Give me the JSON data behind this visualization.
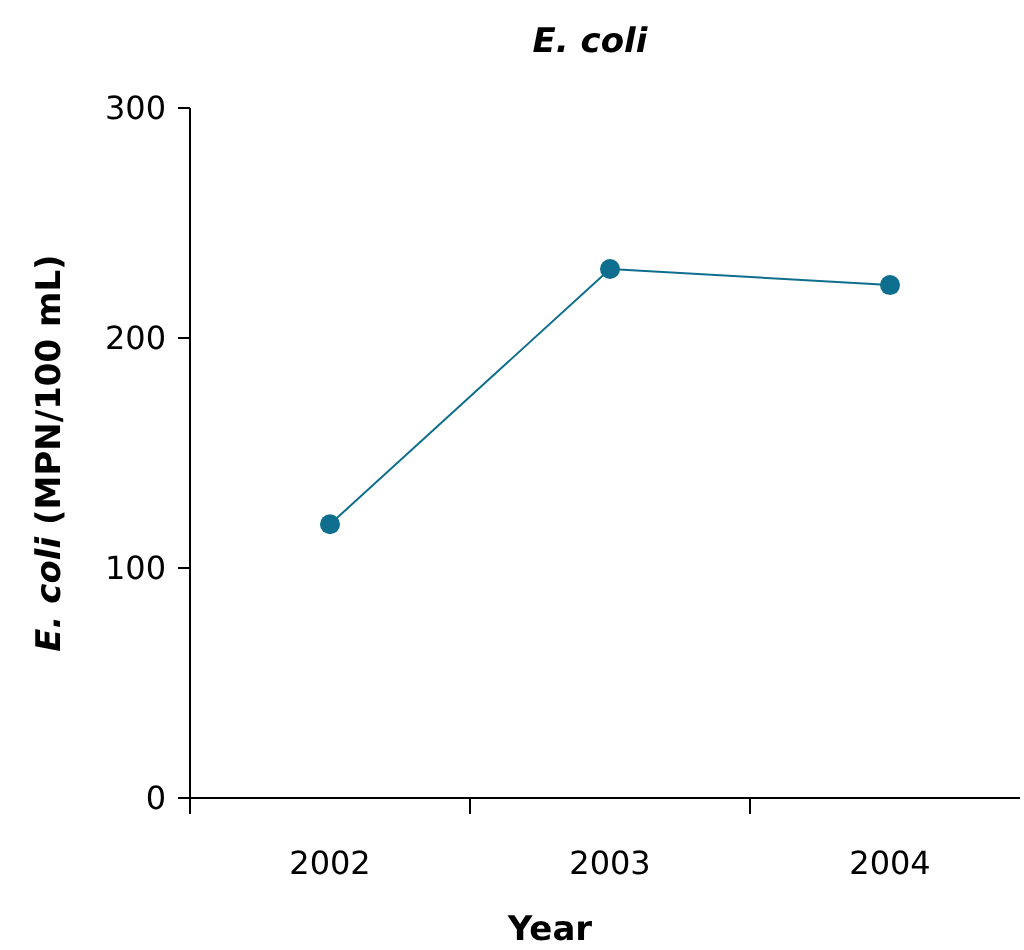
{
  "chart_data": {
    "type": "line",
    "title": "E. coli",
    "xlabel": "Year",
    "ylabel": "E. coli (MPN/100 mL)",
    "categories": [
      "2002",
      "2003",
      "2004"
    ],
    "series": [
      {
        "color": "#0e6e8e",
        "values": [
          119,
          230,
          223
        ]
      }
    ],
    "ylim": [
      0,
      300
    ],
    "yticks": [
      0,
      100,
      200,
      300
    ],
    "grid": false,
    "marker": "circle"
  }
}
